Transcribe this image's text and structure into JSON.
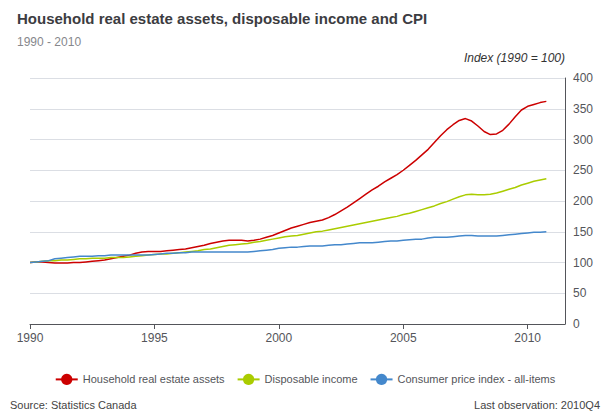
{
  "chart_data": {
    "type": "line",
    "title": "Household real estate assets, disposable income and CPI",
    "subtitle": "1990 - 2010",
    "ylabel": "Index (1990 = 100)",
    "annotations": [
      "Source: Statistics Canada",
      "Last observation: 2010Q4"
    ],
    "xlim": [
      1990,
      2011.5
    ],
    "xticks": [
      1990,
      1995,
      2000,
      2005,
      2010
    ],
    "ylim": [
      0,
      400
    ],
    "yticks": [
      0,
      50,
      100,
      150,
      200,
      250,
      300,
      350,
      400
    ],
    "grid": true,
    "legend": "bottom",
    "x": [
      1990,
      1990.25,
      1990.5,
      1990.75,
      1991,
      1991.25,
      1991.5,
      1991.75,
      1992,
      1992.25,
      1992.5,
      1992.75,
      1993,
      1993.25,
      1993.5,
      1993.75,
      1994,
      1994.25,
      1994.5,
      1994.75,
      1995,
      1995.25,
      1995.5,
      1995.75,
      1996,
      1996.25,
      1996.5,
      1996.75,
      1997,
      1997.25,
      1997.5,
      1997.75,
      1998,
      1998.25,
      1998.5,
      1998.75,
      1999,
      1999.25,
      1999.5,
      1999.75,
      2000,
      2000.25,
      2000.5,
      2000.75,
      2001,
      2001.25,
      2001.5,
      2001.75,
      2002,
      2002.25,
      2002.5,
      2002.75,
      2003,
      2003.25,
      2003.5,
      2003.75,
      2004,
      2004.25,
      2004.5,
      2004.75,
      2005,
      2005.25,
      2005.5,
      2005.75,
      2006,
      2006.25,
      2006.5,
      2006.75,
      2007,
      2007.25,
      2007.5,
      2007.75,
      2008,
      2008.25,
      2008.5,
      2008.75,
      2009,
      2009.25,
      2009.5,
      2009.75,
      2010,
      2010.25,
      2010.5,
      2010.75
    ],
    "series": [
      {
        "name": "Household real estate assets",
        "color": "#cc0000",
        "values": [
          100,
          101,
          101,
          100,
          99,
          99,
          99,
          100,
          100,
          101,
          102,
          103,
          104,
          106,
          108,
          110,
          112,
          115,
          117,
          118,
          118,
          118,
          119,
          120,
          121,
          122,
          124,
          126,
          128,
          131,
          133,
          135,
          136,
          136,
          136,
          135,
          136,
          138,
          141,
          144,
          148,
          152,
          156,
          159,
          162,
          165,
          167,
          169,
          173,
          178,
          184,
          190,
          197,
          204,
          211,
          218,
          224,
          231,
          237,
          243,
          250,
          258,
          266,
          275,
          284,
          295,
          306,
          316,
          324,
          331,
          334,
          330,
          322,
          313,
          308,
          309,
          315,
          325,
          337,
          348,
          354,
          357,
          360,
          362
        ]
      },
      {
        "name": "Disposable income",
        "color": "#aacc00",
        "values": [
          100,
          101,
          102,
          103,
          103,
          104,
          104,
          105,
          106,
          106,
          107,
          107,
          107,
          108,
          108,
          108,
          109,
          110,
          111,
          112,
          113,
          114,
          114,
          115,
          116,
          117,
          118,
          119,
          121,
          122,
          124,
          126,
          128,
          129,
          130,
          131,
          133,
          134,
          136,
          138,
          140,
          142,
          143,
          144,
          146,
          148,
          150,
          151,
          153,
          155,
          157,
          159,
          161,
          163,
          165,
          167,
          169,
          171,
          173,
          175,
          178,
          180,
          183,
          186,
          189,
          192,
          196,
          199,
          203,
          207,
          210,
          211,
          210,
          210,
          211,
          213,
          216,
          219,
          222,
          226,
          229,
          232,
          234,
          236
        ]
      },
      {
        "name": "Consumer price index - all-items",
        "color": "#4488cc",
        "values": [
          100,
          101,
          102,
          103,
          106,
          107,
          108,
          109,
          110,
          110,
          110,
          111,
          111,
          112,
          112,
          112,
          112,
          112,
          112,
          112,
          113,
          114,
          115,
          115,
          116,
          116,
          117,
          117,
          117,
          117,
          117,
          117,
          117,
          117,
          117,
          117,
          118,
          119,
          120,
          121,
          123,
          124,
          125,
          125,
          126,
          127,
          127,
          127,
          128,
          129,
          129,
          130,
          131,
          132,
          132,
          132,
          133,
          134,
          135,
          135,
          136,
          137,
          138,
          138,
          140,
          141,
          141,
          141,
          142,
          143,
          144,
          144,
          143,
          143,
          143,
          143,
          144,
          145,
          146,
          147,
          148,
          149,
          149,
          150
        ]
      }
    ]
  }
}
